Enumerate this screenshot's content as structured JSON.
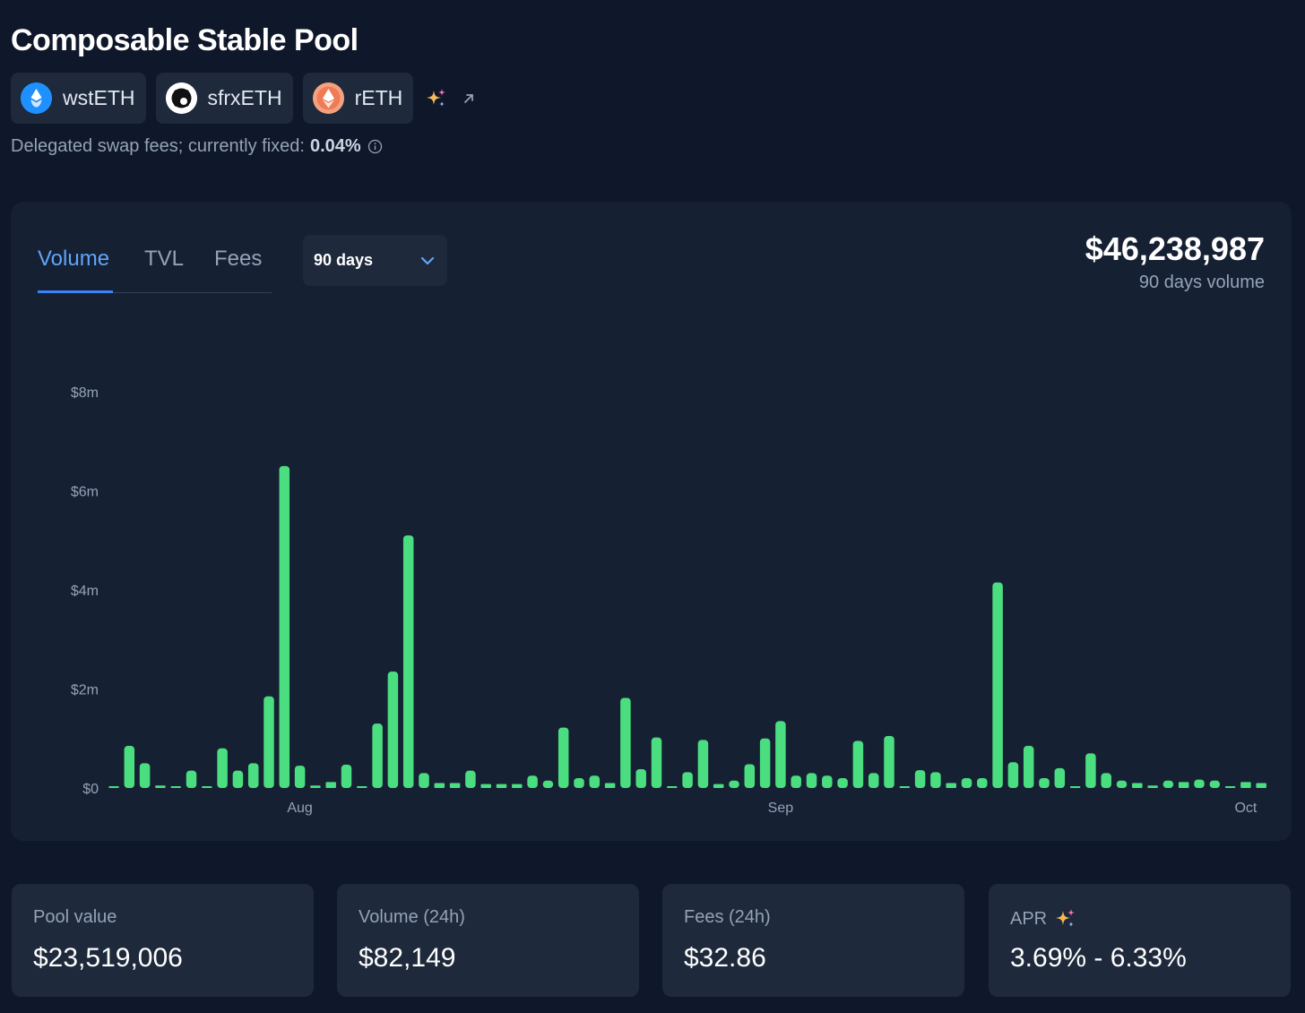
{
  "pool": {
    "title": "Composable Stable Pool",
    "tokens": [
      {
        "symbol": "wstETH",
        "icon": "wsteth-token-icon",
        "color": "#1e90ff"
      },
      {
        "symbol": "sfrxETH",
        "icon": "sfrxeth-token-icon",
        "color": "#ffffff"
      },
      {
        "symbol": "rETH",
        "icon": "reth-token-icon",
        "color": "#f08a6c"
      }
    ],
    "fee_text": "Delegated swap fees; currently fixed:",
    "fee_value": "0.04%"
  },
  "chart_panel": {
    "tabs": [
      "Volume",
      "TVL",
      "Fees"
    ],
    "active_tab": "Volume",
    "range": "90 days",
    "total": "$46,238,987",
    "total_caption": "90 days volume"
  },
  "chart_data": {
    "type": "bar",
    "ylim": [
      0,
      8
    ],
    "y_unit": "$ millions",
    "y_ticks": [
      {
        "value": 0,
        "label": "$0"
      },
      {
        "value": 2,
        "label": "$2m"
      },
      {
        "value": 4,
        "label": "$4m"
      },
      {
        "value": 6,
        "label": "$6m"
      },
      {
        "value": 8,
        "label": "$8m"
      }
    ],
    "x_ticks": [
      {
        "day": 12,
        "label": "Aug"
      },
      {
        "day": 43,
        "label": "Sep"
      },
      {
        "day": 73,
        "label": "Oct"
      }
    ],
    "color": "#4ade80",
    "day_count": 75,
    "values": [
      0.03,
      0.85,
      0.5,
      0.05,
      0.02,
      0.35,
      0.01,
      0.8,
      0.35,
      0.5,
      1.85,
      6.5,
      0.45,
      0.05,
      0.12,
      0.47,
      0.0,
      1.3,
      2.35,
      5.1,
      0.3,
      0.1,
      0.1,
      0.35,
      0.08,
      0.08,
      0.08,
      0.25,
      0.15,
      1.22,
      0.2,
      0.25,
      0.1,
      1.82,
      0.38,
      1.02,
      0.02,
      0.32,
      0.97,
      0.08,
      0.15,
      0.48,
      1.0,
      1.35,
      0.25,
      0.3,
      0.25,
      0.2,
      0.95,
      0.3,
      1.05,
      0.0,
      0.36,
      0.32,
      0.1,
      0.2,
      0.2,
      4.15,
      0.52,
      0.85,
      0.2,
      0.4,
      0.0,
      0.7,
      0.3,
      0.15,
      0.1,
      0.05,
      0.15,
      0.12,
      0.17,
      0.15,
      0.0,
      0.12,
      0.1
    ]
  },
  "stats": [
    {
      "label": "Pool value",
      "value": "$23,519,006"
    },
    {
      "label": "Volume (24h)",
      "value": "$82,149"
    },
    {
      "label": "Fees (24h)",
      "value": "$32.86"
    },
    {
      "label": "APR",
      "value": "3.69% - 6.33%",
      "icon": "sparkle-icon"
    }
  ],
  "colors": {
    "background": "#0f172a",
    "card": "#162033",
    "pill": "#1e293b",
    "accent": "#3b82f6",
    "bar": "#4ade80",
    "muted": "#94a3b8"
  }
}
